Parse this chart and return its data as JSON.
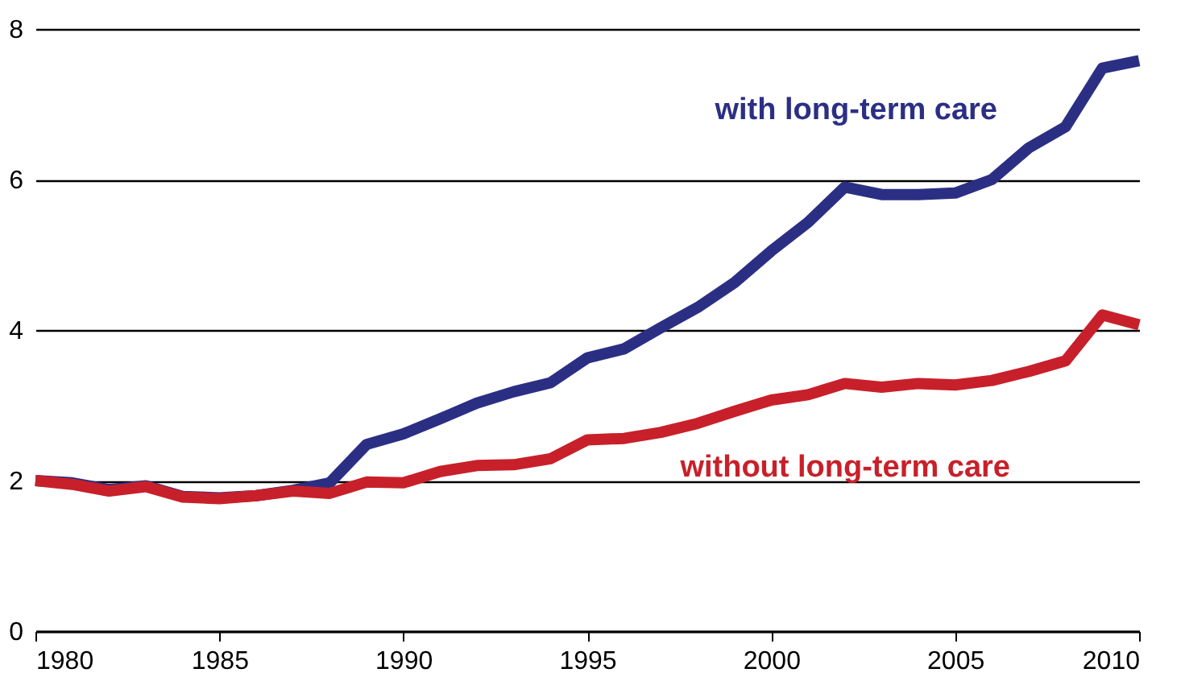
{
  "chart_data": {
    "type": "line",
    "x": [
      1980,
      1981,
      1982,
      1983,
      1984,
      1985,
      1986,
      1987,
      1988,
      1989,
      1990,
      1991,
      1992,
      1993,
      1994,
      1995,
      1996,
      1997,
      1998,
      1999,
      2000,
      2001,
      2002,
      2003,
      2004,
      2005,
      2006,
      2007,
      2008,
      2009,
      2010
    ],
    "series": [
      {
        "name": "with long-term care",
        "color": "#2b2f84",
        "values": [
          2.0,
          1.97,
          1.88,
          1.93,
          1.79,
          1.77,
          1.8,
          1.87,
          1.97,
          2.48,
          2.62,
          2.82,
          3.03,
          3.18,
          3.3,
          3.63,
          3.75,
          4.03,
          4.3,
          4.63,
          5.05,
          5.43,
          5.9,
          5.8,
          5.8,
          5.82,
          6.0,
          6.42,
          6.7,
          7.48,
          7.58
        ]
      },
      {
        "name": "without long-term care",
        "color": "#c8202a",
        "values": [
          2.0,
          1.95,
          1.86,
          1.92,
          1.78,
          1.76,
          1.8,
          1.86,
          1.83,
          1.98,
          1.97,
          2.12,
          2.2,
          2.21,
          2.29,
          2.54,
          2.56,
          2.64,
          2.76,
          2.92,
          3.07,
          3.14,
          3.29,
          3.24,
          3.29,
          3.27,
          3.33,
          3.45,
          3.59,
          4.2,
          4.07
        ]
      }
    ],
    "xlim": [
      1980,
      2010
    ],
    "xticks": [
      1980,
      1985,
      1990,
      1995,
      2000,
      2005,
      2010
    ],
    "ylim": [
      0,
      8
    ],
    "yticks": [
      0,
      2,
      4,
      6,
      8
    ],
    "grid": "y",
    "legend": false,
    "line_style": "solid",
    "marker": "none"
  }
}
